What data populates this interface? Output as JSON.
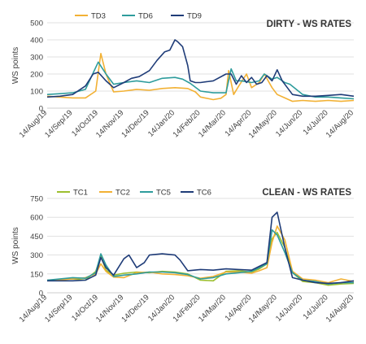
{
  "chart_data": [
    {
      "type": "line",
      "title": "DIRTY - WS RATES",
      "ylabel": "WS points",
      "ylim": [
        0,
        500
      ],
      "yticks": [
        0,
        100,
        200,
        300,
        400,
        500
      ],
      "x_tick_labels": [
        "14/Aug/19",
        "14/Sep/19",
        "14/Oct/19",
        "14/Nov/19",
        "14/Dec/19",
        "14/Jan/20",
        "14/Feb/20",
        "14/Mar/20",
        "14/Apr/20",
        "14/May/20",
        "14/Jun/20",
        "14/Jul/20",
        "14/Aug/20"
      ],
      "grid": true,
      "legend_position": "top-left",
      "series": [
        {
          "name": "TD3",
          "color": "#F2B134",
          "x": [
            0,
            1,
            1.5,
            1.9,
            2.1,
            2.3,
            2.6,
            3,
            3.5,
            4,
            4.5,
            5,
            5.5,
            5.8,
            6,
            6.5,
            6.8,
            7,
            7.1,
            7.3,
            7.5,
            7.8,
            8,
            8.3,
            8.5,
            8.8,
            9,
            9.3,
            9.6,
            10,
            10.5,
            11,
            11.5,
            12
          ],
          "y": [
            70,
            60,
            60,
            100,
            320,
            200,
            95,
            100,
            110,
            105,
            115,
            120,
            115,
            95,
            65,
            50,
            58,
            80,
            220,
            80,
            130,
            200,
            120,
            150,
            200,
            120,
            80,
            60,
            40,
            45,
            40,
            45,
            40,
            45
          ]
        },
        {
          "name": "TD6",
          "color": "#2E9C9C",
          "x": [
            0,
            0.5,
            1,
            1.5,
            2,
            2.3,
            2.6,
            3,
            3.5,
            4,
            4.5,
            5,
            5.3,
            5.6,
            6,
            6.5,
            7,
            7.2,
            7.4,
            7.6,
            8,
            8.3,
            8.5,
            8.8,
            9,
            9.3,
            9.5,
            10,
            10.5,
            11,
            11.5,
            12
          ],
          "y": [
            80,
            85,
            90,
            110,
            270,
            200,
            140,
            150,
            160,
            150,
            175,
            180,
            170,
            145,
            100,
            90,
            90,
            230,
            160,
            160,
            150,
            160,
            200,
            170,
            180,
            150,
            140,
            80,
            65,
            65,
            60,
            55
          ]
        },
        {
          "name": "TD9",
          "color": "#1F3C78",
          "x": [
            0,
            0.5,
            1,
            1.5,
            1.8,
            2,
            2.3,
            2.6,
            3,
            3.3,
            3.6,
            4,
            4.3,
            4.6,
            4.8,
            5,
            5.1,
            5.3,
            5.5,
            5.6,
            5.8,
            6,
            6.5,
            7,
            7.2,
            7.4,
            7.6,
            7.8,
            8,
            8.2,
            8.4,
            8.6,
            8.8,
            9,
            9.2,
            9.4,
            9.6,
            10,
            10.5,
            11,
            11.5,
            12
          ],
          "y": [
            65,
            70,
            80,
            130,
            200,
            210,
            160,
            120,
            150,
            175,
            185,
            220,
            280,
            330,
            340,
            400,
            390,
            360,
            250,
            160,
            150,
            150,
            160,
            200,
            200,
            140,
            190,
            150,
            180,
            140,
            150,
            190,
            160,
            225,
            160,
            120,
            80,
            70,
            70,
            75,
            80,
            70
          ]
        }
      ]
    },
    {
      "type": "line",
      "title": "CLEAN - WS RATES",
      "ylabel": "WS points",
      "ylim": [
        0,
        750
      ],
      "yticks": [
        0,
        150,
        300,
        450,
        600,
        750
      ],
      "x_tick_labels": [
        "14/Aug/19",
        "14/Sep/19",
        "14/Oct/19",
        "14/Nov/19",
        "14/Dec/19",
        "14/Jan/20",
        "14/Feb/20",
        "14/Mar/20",
        "14/Apr/20",
        "14/May/20",
        "14/Jun/20",
        "14/Jul/20",
        "14/Aug/20"
      ],
      "grid": true,
      "legend_position": "top-left",
      "series": [
        {
          "name": "TC1",
          "color": "#9DBF2F",
          "x": [
            0,
            1,
            1.5,
            1.9,
            2.1,
            2.3,
            2.6,
            3,
            3.5,
            4,
            4.5,
            5,
            5.5,
            6,
            6.5,
            7,
            7.5,
            8,
            8.3,
            8.6,
            8.8,
            9,
            9.3,
            9.6,
            10,
            10.5,
            11,
            11.5,
            12
          ],
          "y": [
            100,
            110,
            100,
            170,
            290,
            180,
            140,
            155,
            165,
            160,
            170,
            165,
            150,
            100,
            95,
            170,
            175,
            165,
            190,
            230,
            430,
            480,
            360,
            160,
            90,
            80,
            60,
            70,
            75
          ]
        },
        {
          "name": "TC2",
          "color": "#F2B134",
          "x": [
            0,
            1,
            1.5,
            1.9,
            2.1,
            2.3,
            2.6,
            3,
            3.5,
            4,
            4.5,
            5,
            5.5,
            6,
            6.5,
            7,
            7.5,
            8,
            8.3,
            8.6,
            8.8,
            9,
            9.3,
            9.6,
            10,
            10.5,
            11,
            11.5,
            12
          ],
          "y": [
            95,
            110,
            120,
            150,
            230,
            170,
            125,
            120,
            160,
            165,
            150,
            145,
            135,
            115,
            130,
            165,
            165,
            155,
            175,
            200,
            400,
            530,
            420,
            170,
            110,
            100,
            80,
            110,
            90
          ]
        },
        {
          "name": "TC5",
          "color": "#2E9C9C",
          "x": [
            0,
            1,
            1.5,
            1.9,
            2.1,
            2.3,
            2.6,
            3,
            3.5,
            4,
            4.5,
            5,
            5.5,
            6,
            6.5,
            7,
            7.5,
            8,
            8.3,
            8.6,
            8.8,
            9,
            9.3,
            9.6,
            10,
            10.5,
            11,
            11.5,
            12
          ],
          "y": [
            100,
            120,
            115,
            160,
            310,
            220,
            130,
            140,
            150,
            165,
            165,
            160,
            145,
            110,
            120,
            150,
            160,
            170,
            200,
            230,
            500,
            460,
            320,
            160,
            100,
            90,
            70,
            80,
            80
          ]
        },
        {
          "name": "TC6",
          "color": "#1F3C78",
          "x": [
            0,
            1,
            1.5,
            1.9,
            2.1,
            2.3,
            2.6,
            3,
            3.2,
            3.5,
            3.8,
            4,
            4.5,
            5,
            5.2,
            5.5,
            6,
            6.5,
            7,
            7.5,
            8,
            8.3,
            8.6,
            8.8,
            9,
            9.3,
            9.6,
            10,
            10.5,
            11,
            11.5,
            12
          ],
          "y": [
            95,
            95,
            100,
            140,
            280,
            200,
            140,
            270,
            300,
            200,
            240,
            300,
            310,
            300,
            260,
            175,
            185,
            180,
            190,
            185,
            180,
            210,
            240,
            600,
            640,
            360,
            120,
            100,
            80,
            75,
            80,
            95
          ]
        }
      ]
    }
  ]
}
